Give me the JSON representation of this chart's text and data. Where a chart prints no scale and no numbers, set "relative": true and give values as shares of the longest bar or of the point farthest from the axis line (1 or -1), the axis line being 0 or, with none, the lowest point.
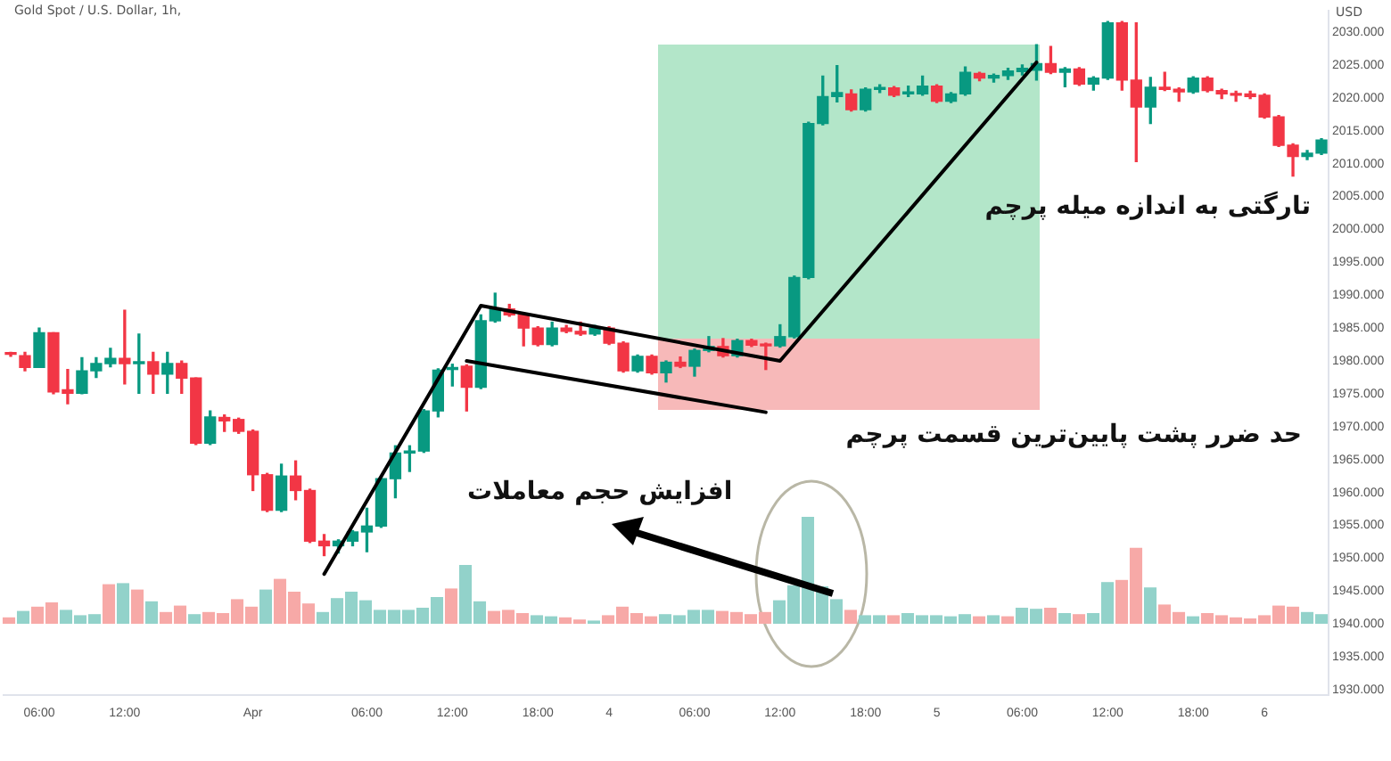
{
  "chart_data": [
    {
      "type": "candlestick",
      "title": "Gold Spot / U.S. Dollar, 1h,",
      "ylabel": "USD",
      "categories": [
        null,
        null,
        "06:00",
        null,
        null,
        null,
        null,
        null,
        "12:00",
        null,
        null,
        null,
        null,
        null,
        null,
        null,
        null,
        "Apr",
        null,
        null,
        null,
        null,
        null,
        null,
        null,
        "06:00",
        null,
        null,
        null,
        null,
        null,
        "12:00",
        null,
        null,
        null,
        null,
        null,
        "18:00",
        null,
        null,
        null,
        null,
        "4",
        null,
        null,
        null,
        null,
        null,
        "06:00",
        null,
        null,
        null,
        null,
        null,
        "12:00",
        null,
        null,
        null,
        null,
        null,
        "18:00",
        null,
        null,
        null,
        null,
        "5",
        null,
        null,
        null,
        null,
        null,
        "06:00",
        null,
        null,
        null,
        null,
        null,
        "12:00",
        null,
        null,
        null,
        null,
        null,
        "18:00",
        null,
        null,
        null,
        null,
        "6",
        null,
        null,
        null,
        null
      ],
      "ohlc": [
        [
          1981.1,
          1981.3,
          1980.7,
          1981
        ],
        [
          1980.8,
          1981.3,
          1978.5,
          1979
        ],
        [
          1979,
          1985,
          1979,
          1984.3
        ],
        [
          1984.3,
          1984.3,
          1975,
          1975.3
        ],
        [
          1975.6,
          1978.7,
          1973.5,
          1975.1
        ],
        [
          1975.1,
          1980.5,
          1975,
          1978.5
        ],
        [
          1978.5,
          1980.5,
          1977.5,
          1979.6
        ],
        [
          1979.6,
          1981.9,
          1979.1,
          1980.4
        ],
        [
          1980.4,
          1987.7,
          1976.5,
          1979.6
        ],
        [
          1979.6,
          1984.1,
          1975.1,
          1979.9
        ],
        [
          1979.9,
          1981.3,
          1975.1,
          1978
        ],
        [
          1978,
          1981.3,
          1975.1,
          1979.6
        ],
        [
          1979.6,
          1980,
          1975.1,
          1977.4
        ],
        [
          1977.4,
          1977.4,
          1967.3,
          1967.5
        ],
        [
          1967.5,
          1972.4,
          1967.3,
          1971.5
        ],
        [
          1971.4,
          1971.8,
          1969.3,
          1970.9
        ],
        [
          1971.1,
          1971.3,
          1969,
          1969.3
        ],
        [
          1969.3,
          1969.5,
          1960.3,
          1962.7
        ],
        [
          1962.7,
          1962.9,
          1957.1,
          1957.3
        ],
        [
          1957.3,
          1964.3,
          1957.1,
          1962.5
        ],
        [
          1962.5,
          1964.8,
          1958.9,
          1960.3
        ],
        [
          1960.3,
          1960.5,
          1952.4,
          1952.6
        ],
        [
          1952.6,
          1953.6,
          1950.4,
          1951.9
        ],
        [
          1951.9,
          1952.8,
          1950.8,
          1952.6
        ],
        [
          1952.6,
          1954.2,
          1951.9,
          1954
        ],
        [
          1954,
          1957.6,
          1951,
          1954.9
        ],
        [
          1954.9,
          1962.3,
          1954.7,
          1962.1
        ],
        [
          1962.1,
          1967.1,
          1959.2,
          1966
        ],
        [
          1966,
          1967.1,
          1963.2,
          1966.3
        ],
        [
          1966.3,
          1972.6,
          1966.1,
          1972.4
        ],
        [
          1972.4,
          1978.8,
          1971.5,
          1978.6
        ],
        [
          1978.7,
          1979.5,
          1976.2,
          1979
        ],
        [
          1979.2,
          1979.4,
          1972.4,
          1976
        ],
        [
          1976,
          1987,
          1975.8,
          1986.1
        ],
        [
          1986.1,
          1990.3,
          1985.9,
          1987.9
        ],
        [
          1987.9,
          1988.6,
          1986.8,
          1987
        ],
        [
          1987,
          1987.2,
          1982.3,
          1985
        ],
        [
          1985,
          1985.2,
          1982.3,
          1982.5
        ],
        [
          1982.5,
          1985.9,
          1982.3,
          1985
        ],
        [
          1985,
          1985.4,
          1984.3,
          1984.5
        ],
        [
          1984.5,
          1985.9,
          1983.9,
          1984.1
        ],
        [
          1984.1,
          1985.4,
          1983.9,
          1985
        ],
        [
          1985,
          1985.2,
          1982.5,
          1982.7
        ],
        [
          1982.7,
          1982.9,
          1978.3,
          1978.5
        ],
        [
          1978.5,
          1980.9,
          1978.3,
          1980.7
        ],
        [
          1980.7,
          1980.9,
          1978,
          1978.2
        ],
        [
          1978.2,
          1980,
          1976.8,
          1979.8
        ],
        [
          1979.8,
          1980.6,
          1979,
          1979.2
        ],
        [
          1979.2,
          1981.8,
          1977.7,
          1981.6
        ],
        [
          1981.6,
          1983.7,
          1981.4,
          1982.2
        ],
        [
          1982.2,
          1983.4,
          1980.6,
          1980.8
        ],
        [
          1980.8,
          1983.3,
          1980.6,
          1983.1
        ],
        [
          1983.1,
          1983.3,
          1982.2,
          1982.4
        ],
        [
          1982.5,
          1982.7,
          1978.7,
          1982.3
        ],
        [
          1982.3,
          1985.5,
          1982.1,
          1983.7
        ],
        [
          1983.7,
          1992.9,
          1983.5,
          1992.7
        ],
        [
          1992.7,
          2016.3,
          1992.5,
          2016.1
        ],
        [
          2016.1,
          2023.3,
          2015.9,
          2020.2
        ],
        [
          2020.2,
          2024.9,
          2019.4,
          2020.8
        ],
        [
          2020.6,
          2021.2,
          2018,
          2018.2
        ],
        [
          2018.2,
          2021.5,
          2018,
          2021.3
        ],
        [
          2021.3,
          2022,
          2020.8,
          2021.5
        ],
        [
          2021.5,
          2021.7,
          2020.2,
          2020.4
        ],
        [
          2020.6,
          2021.8,
          2020.2,
          2020.9
        ],
        [
          2020.6,
          2023.3,
          2020.4,
          2021.8
        ],
        [
          2021.8,
          2022,
          2019.3,
          2019.5
        ],
        [
          2019.5,
          2020.8,
          2019.3,
          2020.6
        ],
        [
          2020.6,
          2024.7,
          2020.4,
          2023.9
        ],
        [
          2023.7,
          2023.9,
          2022.6,
          2023
        ],
        [
          2023,
          2023.6,
          2022.4,
          2023.4
        ],
        [
          2023.4,
          2024.5,
          2022.8,
          2024.1
        ],
        [
          2024,
          2025,
          2023.5,
          2024.5
        ],
        [
          2024.2,
          2028.1,
          2022.7,
          2025.2
        ],
        [
          2025.2,
          2027.8,
          2023.7,
          2023.9
        ],
        [
          2023.9,
          2024.6,
          2021.7,
          2024.4
        ],
        [
          2024.4,
          2024.6,
          2021.9,
          2022.1
        ],
        [
          2022.1,
          2023.2,
          2021.2,
          2023
        ],
        [
          2023,
          2031.6,
          2022.8,
          2031.4
        ],
        [
          2031.4,
          2031.6,
          2021.2,
          2022.7
        ],
        [
          2022.7,
          2031.4,
          2010.3,
          2018.6
        ],
        [
          2018.6,
          2023.1,
          2016.1,
          2021.6
        ],
        [
          2021.6,
          2023.9,
          2021.1,
          2021.3
        ],
        [
          2021.3,
          2021.5,
          2019.5,
          2020.9
        ],
        [
          2020.9,
          2023.2,
          2020.7,
          2023
        ],
        [
          2023,
          2023.2,
          2020.9,
          2021.1
        ],
        [
          2021.1,
          2021.3,
          2019.9,
          2020.6
        ],
        [
          2020.6,
          2021,
          2019.5,
          2020.4
        ],
        [
          2020.6,
          2021,
          2019.9,
          2020.2
        ],
        [
          2020.4,
          2020.6,
          2016.9,
          2017.1
        ],
        [
          2017.1,
          2017.3,
          2012.6,
          2012.8
        ],
        [
          2012.8,
          2013,
          2008.1,
          2011.1
        ],
        [
          2011.1,
          2012,
          2010.6,
          2011.6
        ],
        [
          2011.6,
          2013.8,
          2011.4,
          2013.6
        ]
      ],
      "colors": [
        "#f23645",
        "#f23645",
        "#089981",
        "#f23645",
        "#f23645",
        "#089981",
        "#089981",
        "#089981",
        "#f23645",
        "#089981",
        "#f23645",
        "#089981",
        "#f23645",
        "#f23645",
        "#089981",
        "#f23645",
        "#f23645",
        "#f23645",
        "#f23645",
        "#089981",
        "#f23645",
        "#f23645",
        "#f23645",
        "#089981",
        "#089981",
        "#089981",
        "#089981",
        "#089981",
        "#089981",
        "#089981",
        "#089981",
        "#089981",
        "#f23645",
        "#089981",
        "#089981",
        "#f23645",
        "#f23645",
        "#f23645",
        "#089981",
        "#f23645",
        "#f23645",
        "#089981",
        "#f23645",
        "#f23645",
        "#089981",
        "#f23645",
        "#089981",
        "#f23645",
        "#089981",
        "#089981",
        "#f23645",
        "#089981",
        "#f23645",
        "#f23645",
        "#089981",
        "#089981",
        "#089981",
        "#089981",
        "#089981",
        "#f23645",
        "#089981",
        "#089981",
        "#f23645",
        "#089981",
        "#089981",
        "#f23645",
        "#089981",
        "#089981",
        "#f23645",
        "#089981",
        "#089981",
        "#089981",
        "#089981",
        "#f23645",
        "#089981",
        "#f23645",
        "#089981",
        "#089981",
        "#f23645",
        "#f23645",
        "#089981",
        "#f23645",
        "#f23645",
        "#089981",
        "#f23645",
        "#f23645",
        "#f23645",
        "#f23645",
        "#f23645",
        "#f23645",
        "#f23645",
        "#089981",
        "#089981"
      ],
      "ylim": [
        1929.2,
        2033.2
      ],
      "yticks": [
        {
          "value": 1930,
          "label": "1930.000"
        },
        {
          "value": 1935,
          "label": "1935.000"
        },
        {
          "value": 1940,
          "label": "1940.000"
        },
        {
          "value": 1945,
          "label": "1945.000"
        },
        {
          "value": 1950,
          "label": "1950.000"
        },
        {
          "value": 1955,
          "label": "1955.000"
        },
        {
          "value": 1960,
          "label": "1960.000"
        },
        {
          "value": 1965,
          "label": "1965.000"
        },
        {
          "value": 1970,
          "label": "1970.000"
        },
        {
          "value": 1975,
          "label": "1975.000"
        },
        {
          "value": 1980,
          "label": "1980.000"
        },
        {
          "value": 1985,
          "label": "1985.000"
        },
        {
          "value": 1990,
          "label": "1990.000"
        },
        {
          "value": 1995,
          "label": "1995.000"
        },
        {
          "value": 2000,
          "label": "2000.000"
        },
        {
          "value": 2005,
          "label": "2005.000"
        },
        {
          "value": 2010,
          "label": "2010.000"
        },
        {
          "value": 2015,
          "label": "2015.000"
        },
        {
          "value": 2020,
          "label": "2020.000"
        },
        {
          "value": 2025,
          "label": "2025.000"
        },
        {
          "value": 2030,
          "label": "2030.000"
        }
      ],
      "series": [
        {
          "type": "line",
          "color": "#000000",
          "values": [
            null,
            null,
            null,
            null,
            null,
            null,
            null,
            null,
            null,
            null,
            null,
            null,
            null,
            null,
            null,
            null,
            null,
            null,
            null,
            null,
            null,
            null,
            1947.6,
            null,
            null,
            null,
            null,
            null,
            null,
            null,
            null,
            null,
            null,
            1988.4,
            null,
            null,
            null,
            null,
            null,
            null,
            null,
            null,
            null,
            null,
            null,
            null,
            null,
            null,
            null,
            null,
            null,
            null,
            null,
            null,
            1980,
            null,
            null,
            null,
            null,
            null,
            null,
            null,
            null,
            null,
            null,
            null,
            null,
            null,
            null,
            null,
            null,
            null,
            2025.4,
            null,
            null,
            null,
            null,
            null,
            null,
            null,
            null,
            null,
            null,
            null,
            null,
            null,
            null,
            null,
            null,
            null,
            null,
            null,
            null
          ]
        },
        {
          "type": "line",
          "color": "#000000",
          "values": [
            null,
            null,
            null,
            null,
            null,
            null,
            null,
            null,
            null,
            null,
            null,
            null,
            null,
            null,
            null,
            null,
            null,
            null,
            null,
            null,
            null,
            null,
            null,
            null,
            null,
            null,
            null,
            null,
            null,
            null,
            null,
            null,
            1980,
            null,
            null,
            null,
            null,
            null,
            null,
            null,
            null,
            null,
            null,
            null,
            null,
            null,
            null,
            null,
            null,
            null,
            null,
            null,
            null,
            1972.2,
            null,
            null,
            null,
            null,
            null,
            null,
            null,
            null,
            null,
            null,
            null,
            null,
            null,
            null,
            null,
            null,
            null,
            null,
            null,
            null,
            null,
            null,
            null,
            null,
            null,
            null,
            null,
            null,
            null,
            null,
            null,
            null,
            null,
            null,
            null,
            null,
            null,
            null,
            null
          ]
        }
      ],
      "annotations": [
        "تارگتی به اندازه میله پرچم",
        "حد ضرر پشت پایین‌ترین قسمت پرچم",
        "افزایش حجم معاملات"
      ]
    },
    {
      "type": "bar",
      "relative": true,
      "tick_labels": false,
      "categories": [
        null,
        null,
        null,
        null,
        null,
        null,
        null,
        null,
        null,
        null,
        null,
        null,
        null,
        null,
        null,
        null,
        null,
        null,
        null,
        null,
        null,
        null,
        null,
        null,
        null,
        null,
        null,
        null,
        null,
        null,
        null,
        null,
        null,
        null,
        null,
        null,
        null,
        null,
        null,
        null,
        null,
        null,
        null,
        null,
        null,
        null,
        null,
        null,
        null,
        null,
        null,
        null,
        null,
        null,
        null,
        null,
        null,
        null,
        null,
        null,
        null,
        null,
        null,
        null,
        null,
        null,
        null,
        null,
        null,
        null,
        null,
        null,
        null,
        null,
        null,
        null,
        null,
        null,
        null,
        null,
        null,
        null,
        null,
        null,
        null,
        null,
        null,
        null,
        null,
        null,
        null,
        null,
        null
      ],
      "values": [
        0.06,
        0.12,
        0.16,
        0.2,
        0.13,
        0.08,
        0.09,
        0.37,
        0.38,
        0.32,
        0.21,
        0.11,
        0.17,
        0.09,
        0.11,
        0.1,
        0.23,
        0.16,
        0.32,
        0.42,
        0.3,
        0.19,
        0.11,
        0.24,
        0.3,
        0.22,
        0.13,
        0.13,
        0.13,
        0.15,
        0.25,
        0.33,
        0.55,
        0.21,
        0.12,
        0.13,
        0.1,
        0.08,
        0.07,
        0.06,
        0.04,
        0.03,
        0.08,
        0.16,
        0.1,
        0.07,
        0.09,
        0.08,
        0.13,
        0.13,
        0.12,
        0.11,
        0.09,
        0.11,
        0.22,
        0.36,
        1,
        0.35,
        0.23,
        0.13,
        0.08,
        0.08,
        0.08,
        0.1,
        0.08,
        0.08,
        0.07,
        0.09,
        0.07,
        0.08,
        0.07,
        0.15,
        0.14,
        0.15,
        0.1,
        0.09,
        0.1,
        0.39,
        0.41,
        0.71,
        0.34,
        0.18,
        0.11,
        0.07,
        0.1,
        0.08,
        0.06,
        0.05,
        0.08,
        0.17,
        0.16,
        0.11,
        0.09
      ],
      "colors": [
        "#f7a9a7",
        "#92d2ca",
        "#f7a9a7",
        "#f7a9a7",
        "#92d2ca",
        "#92d2ca",
        "#92d2ca",
        "#f7a9a7",
        "#92d2ca",
        "#f7a9a7",
        "#92d2ca",
        "#f7a9a7",
        "#f7a9a7",
        "#92d2ca",
        "#f7a9a7",
        "#f7a9a7",
        "#f7a9a7",
        "#f7a9a7",
        "#92d2ca",
        "#f7a9a7",
        "#f7a9a7",
        "#f7a9a7",
        "#92d2ca",
        "#92d2ca",
        "#92d2ca",
        "#92d2ca",
        "#92d2ca",
        "#92d2ca",
        "#92d2ca",
        "#92d2ca",
        "#92d2ca",
        "#f7a9a7",
        "#92d2ca",
        "#92d2ca",
        "#f7a9a7",
        "#f7a9a7",
        "#f7a9a7",
        "#92d2ca",
        "#92d2ca",
        "#f7a9a7",
        "#f7a9a7",
        "#92d2ca",
        "#f7a9a7",
        "#f7a9a7",
        "#f7a9a7",
        "#f7a9a7",
        "#92d2ca",
        "#92d2ca",
        "#92d2ca",
        "#92d2ca",
        "#f7a9a7",
        "#f7a9a7",
        "#f7a9a7",
        "#f7a9a7",
        "#92d2ca",
        "#92d2ca",
        "#92d2ca",
        "#92d2ca",
        "#92d2ca",
        "#f7a9a7",
        "#92d2ca",
        "#92d2ca",
        "#f7a9a7",
        "#92d2ca",
        "#92d2ca",
        "#92d2ca",
        "#92d2ca",
        "#92d2ca",
        "#f7a9a7",
        "#92d2ca",
        "#f7a9a7",
        "#92d2ca",
        "#92d2ca",
        "#f7a9a7",
        "#92d2ca",
        "#f7a9a7",
        "#92d2ca",
        "#92d2ca",
        "#f7a9a7",
        "#f7a9a7",
        "#92d2ca",
        "#f7a9a7",
        "#f7a9a7",
        "#92d2ca",
        "#f7a9a7",
        "#f7a9a7",
        "#f7a9a7",
        "#f7a9a7",
        "#f7a9a7",
        "#f7a9a7",
        "#f7a9a7",
        "#92d2ca",
        "#92d2ca"
      ]
    }
  ]
}
